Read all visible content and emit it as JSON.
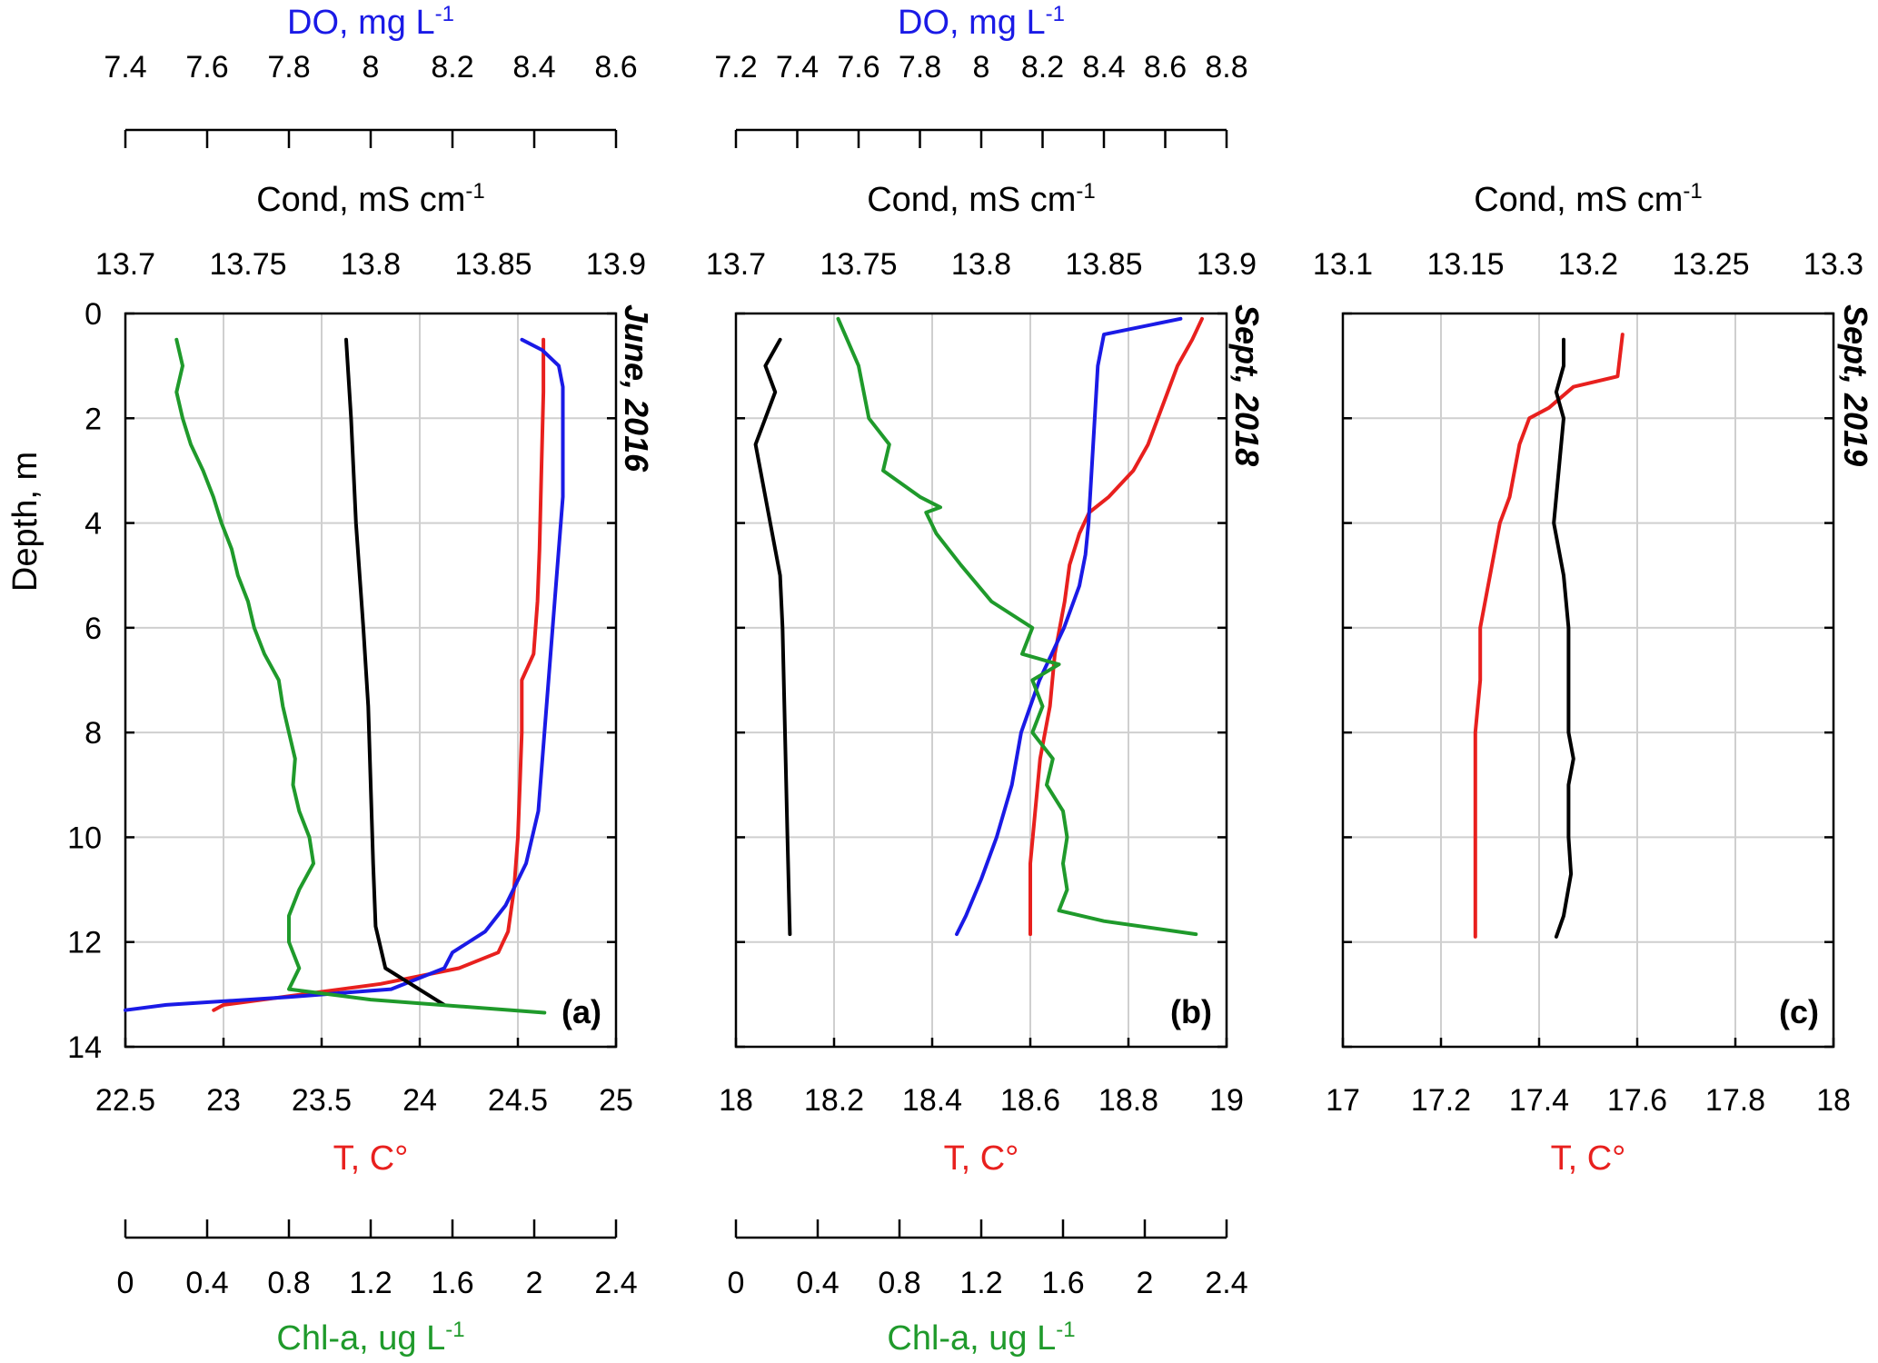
{
  "colors": {
    "temperature": "#e8201e",
    "do": "#1a1ae6",
    "cond": "#000000",
    "chla": "#1f9a2b"
  },
  "common": {
    "ylabel": "Depth, m",
    "y_ticks": [
      "0",
      "2",
      "4",
      "6",
      "8",
      "10",
      "12",
      "14"
    ],
    "t_label": "T, C°",
    "cond_label": "Cond, mS cm",
    "cond_sup": "-1",
    "do_label": "DO, mg L",
    "do_sup": "-1",
    "chla_label": "Chl-a, ug L",
    "chla_sup": "-1"
  },
  "chart_data": [
    {
      "type": "line",
      "panel": "(a)",
      "date_label": "June, 2016",
      "ylim": [
        0,
        14
      ],
      "y_reversed": true,
      "t_axis": {
        "range": [
          22.5,
          25
        ],
        "ticks": [
          "22.5",
          "23",
          "23.5",
          "24",
          "24.5",
          "25"
        ]
      },
      "cond_axis": {
        "range": [
          13.7,
          13.9
        ],
        "ticks": [
          "13.7",
          "13.75",
          "13.8",
          "13.85",
          "13.9"
        ]
      },
      "do_axis": {
        "range": [
          7.4,
          8.6
        ],
        "ticks": [
          "7.4",
          "7.6",
          "7.8",
          "8",
          "8.2",
          "8.4",
          "8.6"
        ]
      },
      "chla_axis": {
        "range": [
          0,
          2.4
        ],
        "ticks": [
          "0",
          "0.4",
          "0.8",
          "1.2",
          "1.6",
          "2",
          "2.4"
        ]
      },
      "series": [
        {
          "name": "T, C°",
          "axis": "t_axis",
          "color_key": "temperature",
          "points": [
            [
              24.63,
              0.5
            ],
            [
              24.63,
              1.5
            ],
            [
              24.62,
              3
            ],
            [
              24.61,
              4.5
            ],
            [
              24.6,
              5.5
            ],
            [
              24.58,
              6.5
            ],
            [
              24.52,
              7
            ],
            [
              24.52,
              8
            ],
            [
              24.51,
              9
            ],
            [
              24.5,
              10
            ],
            [
              24.48,
              11
            ],
            [
              24.45,
              11.8
            ],
            [
              24.4,
              12.2
            ],
            [
              24.2,
              12.5
            ],
            [
              23.8,
              12.8
            ],
            [
              23.4,
              13
            ],
            [
              23.0,
              13.2
            ],
            [
              22.95,
              13.3
            ]
          ]
        },
        {
          "name": "DO, mg L-1",
          "axis": "do_axis",
          "color_key": "do",
          "points": [
            [
              8.37,
              0.5
            ],
            [
              8.42,
              0.7
            ],
            [
              8.46,
              1.0
            ],
            [
              8.47,
              1.4
            ],
            [
              8.47,
              2.5
            ],
            [
              8.47,
              3.5
            ],
            [
              8.46,
              4.5
            ],
            [
              8.45,
              5.5
            ],
            [
              8.44,
              6.5
            ],
            [
              8.43,
              7.5
            ],
            [
              8.42,
              8.5
            ],
            [
              8.41,
              9.5
            ],
            [
              8.38,
              10.5
            ],
            [
              8.33,
              11.3
            ],
            [
              8.28,
              11.8
            ],
            [
              8.2,
              12.2
            ],
            [
              8.18,
              12.5
            ],
            [
              8.05,
              12.9
            ],
            [
              7.8,
              13.05
            ],
            [
              7.5,
              13.2
            ],
            [
              7.4,
              13.3
            ]
          ]
        },
        {
          "name": "Cond, mS cm-1",
          "axis": "cond_axis",
          "color_key": "cond",
          "points": [
            [
              13.79,
              0.5
            ],
            [
              13.792,
              2
            ],
            [
              13.794,
              4
            ],
            [
              13.797,
              6
            ],
            [
              13.799,
              7.5
            ],
            [
              13.8,
              9
            ],
            [
              13.801,
              10.5
            ],
            [
              13.802,
              11.7
            ],
            [
              13.806,
              12.5
            ],
            [
              13.83,
              13.2
            ]
          ]
        },
        {
          "name": "Chl-a, ug L-1",
          "axis": "chla_axis",
          "color_key": "chla",
          "points": [
            [
              0.25,
              0.5
            ],
            [
              0.28,
              1
            ],
            [
              0.25,
              1.5
            ],
            [
              0.28,
              2
            ],
            [
              0.32,
              2.5
            ],
            [
              0.38,
              3
            ],
            [
              0.43,
              3.5
            ],
            [
              0.47,
              4
            ],
            [
              0.52,
              4.5
            ],
            [
              0.55,
              5
            ],
            [
              0.6,
              5.5
            ],
            [
              0.63,
              6
            ],
            [
              0.68,
              6.5
            ],
            [
              0.75,
              7
            ],
            [
              0.77,
              7.5
            ],
            [
              0.8,
              8
            ],
            [
              0.83,
              8.5
            ],
            [
              0.82,
              9
            ],
            [
              0.85,
              9.5
            ],
            [
              0.9,
              10
            ],
            [
              0.92,
              10.5
            ],
            [
              0.85,
              11
            ],
            [
              0.8,
              11.5
            ],
            [
              0.8,
              12
            ],
            [
              0.85,
              12.5
            ],
            [
              0.8,
              12.9
            ],
            [
              1.2,
              13.1
            ],
            [
              2.05,
              13.35
            ]
          ]
        }
      ]
    },
    {
      "type": "line",
      "panel": "(b)",
      "date_label": "Sept, 2018",
      "ylim": [
        0,
        14
      ],
      "y_reversed": true,
      "t_axis": {
        "range": [
          18,
          19
        ],
        "ticks": [
          "18",
          "18.2",
          "18.4",
          "18.6",
          "18.8",
          "19"
        ]
      },
      "cond_axis": {
        "range": [
          13.7,
          13.9
        ],
        "ticks": [
          "13.7",
          "13.75",
          "13.8",
          "13.85",
          "13.9"
        ]
      },
      "do_axis": {
        "range": [
          7.2,
          8.8
        ],
        "ticks": [
          "7.2",
          "7.4",
          "7.6",
          "7.8",
          "8",
          "8.2",
          "8.4",
          "8.6",
          "8.8"
        ]
      },
      "chla_axis": {
        "range": [
          0,
          2.4
        ],
        "ticks": [
          "0",
          "0.4",
          "0.8",
          "1.2",
          "1.6",
          "2",
          "2.4"
        ]
      },
      "series": [
        {
          "name": "T, C°",
          "axis": "t_axis",
          "color_key": "temperature",
          "points": [
            [
              18.95,
              0.1
            ],
            [
              18.93,
              0.5
            ],
            [
              18.9,
              1
            ],
            [
              18.88,
              1.5
            ],
            [
              18.86,
              2
            ],
            [
              18.84,
              2.5
            ],
            [
              18.81,
              3
            ],
            [
              18.76,
              3.5
            ],
            [
              18.72,
              3.8
            ],
            [
              18.7,
              4.2
            ],
            [
              18.68,
              4.8
            ],
            [
              18.67,
              5.5
            ],
            [
              18.65,
              6.5
            ],
            [
              18.64,
              7.5
            ],
            [
              18.62,
              8.5
            ],
            [
              18.61,
              9.5
            ],
            [
              18.6,
              10.5
            ],
            [
              18.6,
              11.5
            ],
            [
              18.6,
              11.85
            ]
          ]
        },
        {
          "name": "DO, mg L-1",
          "axis": "do_axis",
          "color_key": "do",
          "points": [
            [
              8.65,
              0.1
            ],
            [
              8.4,
              0.4
            ],
            [
              8.38,
              1
            ],
            [
              8.37,
              2
            ],
            [
              8.36,
              3
            ],
            [
              8.35,
              4
            ],
            [
              8.34,
              4.6
            ],
            [
              8.32,
              5.2
            ],
            [
              8.27,
              6
            ],
            [
              8.19,
              7
            ],
            [
              8.13,
              8
            ],
            [
              8.1,
              9
            ],
            [
              8.05,
              10
            ],
            [
              8.0,
              10.8
            ],
            [
              7.95,
              11.5
            ],
            [
              7.92,
              11.85
            ]
          ]
        },
        {
          "name": "Cond, mS cm-1",
          "axis": "cond_axis",
          "color_key": "cond",
          "points": [
            [
              13.718,
              0.5
            ],
            [
              13.712,
              1
            ],
            [
              13.716,
              1.5
            ],
            [
              13.712,
              2
            ],
            [
              13.708,
              2.5
            ],
            [
              13.71,
              3
            ],
            [
              13.714,
              4
            ],
            [
              13.718,
              5
            ],
            [
              13.719,
              6
            ],
            [
              13.72,
              8
            ],
            [
              13.721,
              10
            ],
            [
              13.722,
              11.85
            ]
          ]
        },
        {
          "name": "Chl-a, ug L-1",
          "axis": "chla_axis",
          "color_key": "chla",
          "points": [
            [
              0.5,
              0.1
            ],
            [
              0.6,
              1
            ],
            [
              0.65,
              2
            ],
            [
              0.75,
              2.5
            ],
            [
              0.72,
              3
            ],
            [
              0.9,
              3.5
            ],
            [
              1.0,
              3.7
            ],
            [
              0.93,
              3.8
            ],
            [
              0.98,
              4.2
            ],
            [
              1.1,
              4.8
            ],
            [
              1.25,
              5.5
            ],
            [
              1.45,
              6
            ],
            [
              1.4,
              6.5
            ],
            [
              1.58,
              6.7
            ],
            [
              1.45,
              7
            ],
            [
              1.5,
              7.5
            ],
            [
              1.45,
              8
            ],
            [
              1.55,
              8.5
            ],
            [
              1.52,
              9
            ],
            [
              1.6,
              9.5
            ],
            [
              1.62,
              10
            ],
            [
              1.6,
              10.5
            ],
            [
              1.62,
              11
            ],
            [
              1.58,
              11.4
            ],
            [
              1.8,
              11.6
            ],
            [
              2.25,
              11.85
            ]
          ]
        }
      ]
    },
    {
      "type": "line",
      "panel": "(c)",
      "date_label": "Sept, 2019",
      "ylim": [
        0,
        14
      ],
      "y_reversed": true,
      "t_axis": {
        "range": [
          17,
          18
        ],
        "ticks": [
          "17",
          "17.2",
          "17.4",
          "17.6",
          "17.8",
          "18"
        ]
      },
      "cond_axis": {
        "range": [
          13.1,
          13.3
        ],
        "ticks": [
          "13.1",
          "13.15",
          "13.2",
          "13.25",
          "13.3"
        ]
      },
      "series": [
        {
          "name": "T, C°",
          "axis": "t_axis",
          "color_key": "temperature",
          "points": [
            [
              17.57,
              0.4
            ],
            [
              17.56,
              1.2
            ],
            [
              17.47,
              1.4
            ],
            [
              17.42,
              1.8
            ],
            [
              17.38,
              2
            ],
            [
              17.36,
              2.5
            ],
            [
              17.35,
              3
            ],
            [
              17.34,
              3.5
            ],
            [
              17.32,
              4
            ],
            [
              17.31,
              4.5
            ],
            [
              17.3,
              5
            ],
            [
              17.29,
              5.5
            ],
            [
              17.28,
              6
            ],
            [
              17.28,
              7
            ],
            [
              17.27,
              8
            ],
            [
              17.27,
              9
            ],
            [
              17.27,
              10
            ],
            [
              17.27,
              11
            ],
            [
              17.27,
              11.9
            ]
          ]
        },
        {
          "name": "Cond, mS cm-1",
          "axis": "cond_axis",
          "color_key": "cond",
          "points": [
            [
              13.19,
              0.5
            ],
            [
              13.19,
              1
            ],
            [
              13.187,
              1.5
            ],
            [
              13.19,
              2
            ],
            [
              13.188,
              3
            ],
            [
              13.186,
              4
            ],
            [
              13.19,
              5
            ],
            [
              13.192,
              6
            ],
            [
              13.192,
              7
            ],
            [
              13.192,
              8
            ],
            [
              13.194,
              8.5
            ],
            [
              13.192,
              9
            ],
            [
              13.192,
              10
            ],
            [
              13.193,
              10.7
            ],
            [
              13.19,
              11.5
            ],
            [
              13.187,
              11.9
            ]
          ]
        }
      ]
    }
  ]
}
